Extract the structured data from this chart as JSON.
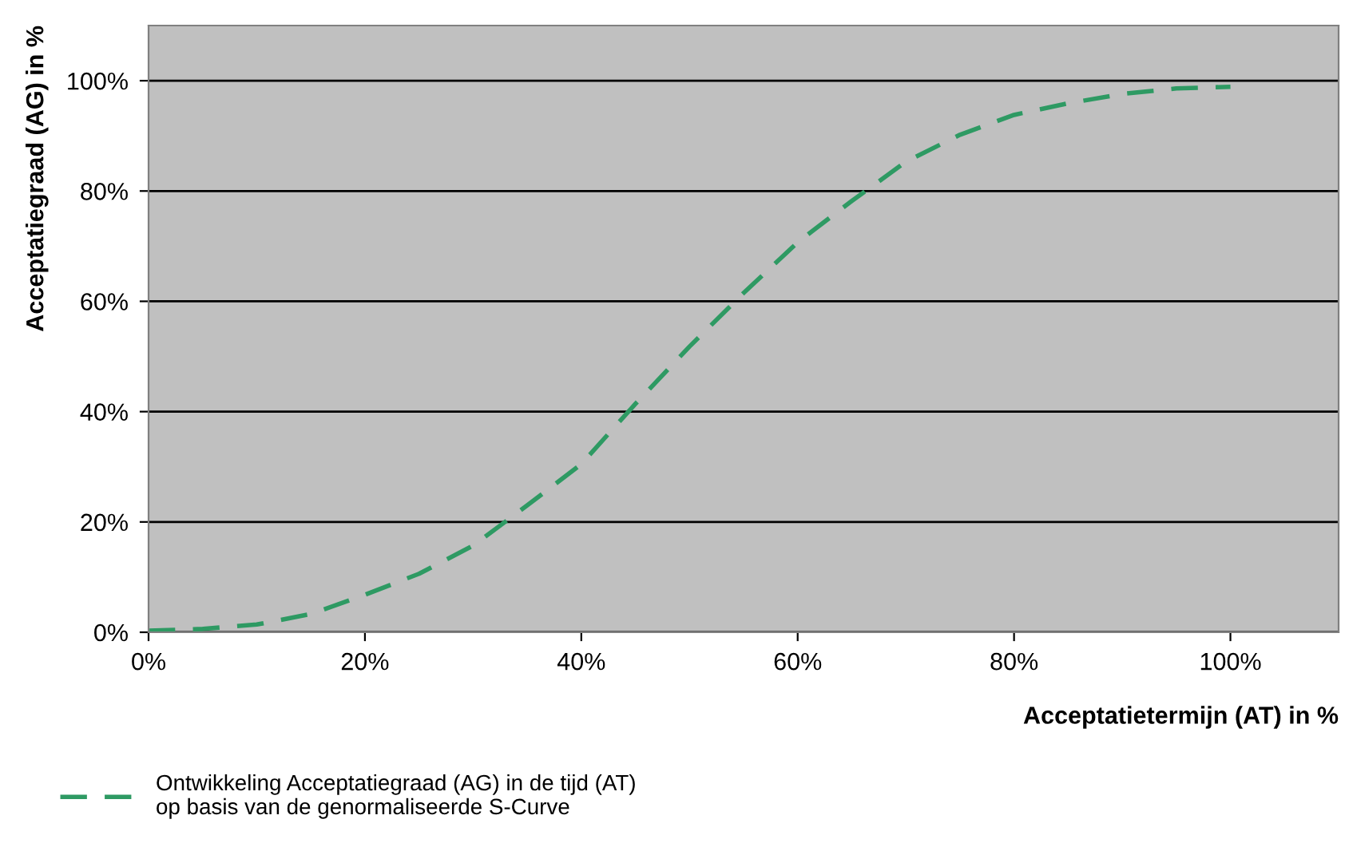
{
  "chart_data": {
    "type": "line",
    "xlabel": "Acceptatietermijn (AT) in %",
    "ylabel": "Acceptatiegraad (AG) in %",
    "xlim": [
      0,
      110
    ],
    "ylim": [
      0,
      110
    ],
    "xticks": [
      {
        "value": 0,
        "label": "0%"
      },
      {
        "value": 20,
        "label": "20%"
      },
      {
        "value": 40,
        "label": "40%"
      },
      {
        "value": 60,
        "label": "60%"
      },
      {
        "value": 80,
        "label": "80%"
      },
      {
        "value": 100,
        "label": "100%"
      }
    ],
    "yticks": [
      {
        "value": 0,
        "label": "0%"
      },
      {
        "value": 20,
        "label": "20%"
      },
      {
        "value": 40,
        "label": "40%"
      },
      {
        "value": 60,
        "label": "60%"
      },
      {
        "value": 80,
        "label": "80%"
      },
      {
        "value": 100,
        "label": "100%"
      }
    ],
    "grid": "y",
    "legend": "bottom left",
    "line_style": "dashed",
    "marker": "none",
    "series": [
      {
        "name": "Ontwikkeling Acceptatiegraad (AG) in de tijd (AT)\nop basis van de genormaliseerde S-Curve",
        "color": "#2e9a63",
        "x": [
          0,
          5,
          10,
          15,
          20,
          25,
          30,
          35,
          40,
          45,
          50,
          55,
          60,
          65,
          70,
          75,
          80,
          85,
          90,
          95,
          100
        ],
        "values": [
          0.3,
          0.6,
          1.4,
          3.3,
          6.8,
          10.6,
          15.7,
          23,
          30.5,
          41.4,
          51.8,
          61.5,
          70.7,
          78.2,
          85.3,
          90.2,
          93.8,
          95.9,
          97.6,
          98.6,
          98.9
        ]
      }
    ]
  }
}
